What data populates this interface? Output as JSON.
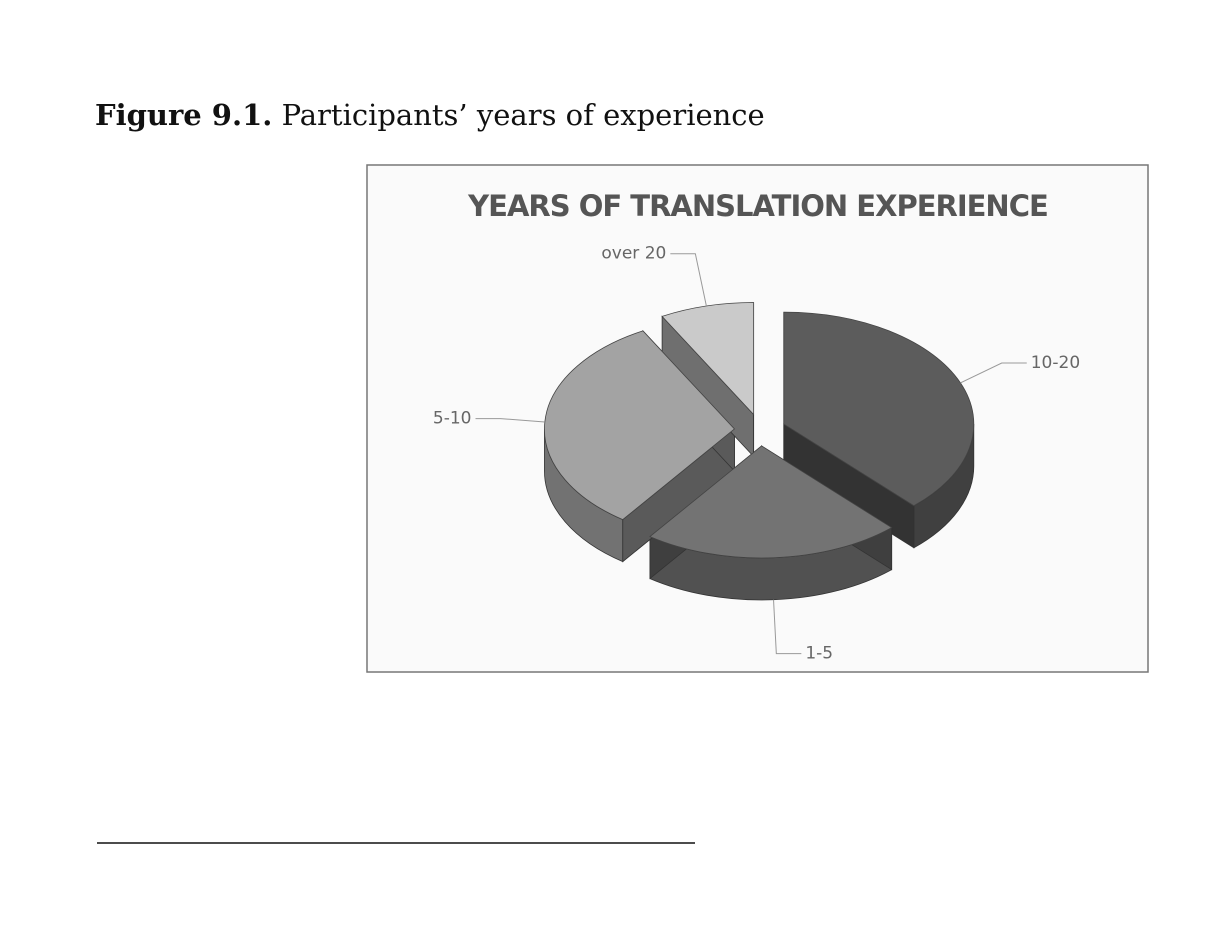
{
  "caption": {
    "label": "Figure 9.1.",
    "text": "Participants’ years of experience"
  },
  "chart_data": {
    "type": "pie",
    "title": "YEARS OF TRANSLATION EXPERIENCE",
    "categories": [
      "10-20",
      "1-5",
      "5-10",
      "over 20"
    ],
    "values": [
      38,
      22,
      32,
      8
    ],
    "colors": [
      "#5c5c5c",
      "#737373",
      "#a3a3a3",
      "#cacaca"
    ]
  }
}
